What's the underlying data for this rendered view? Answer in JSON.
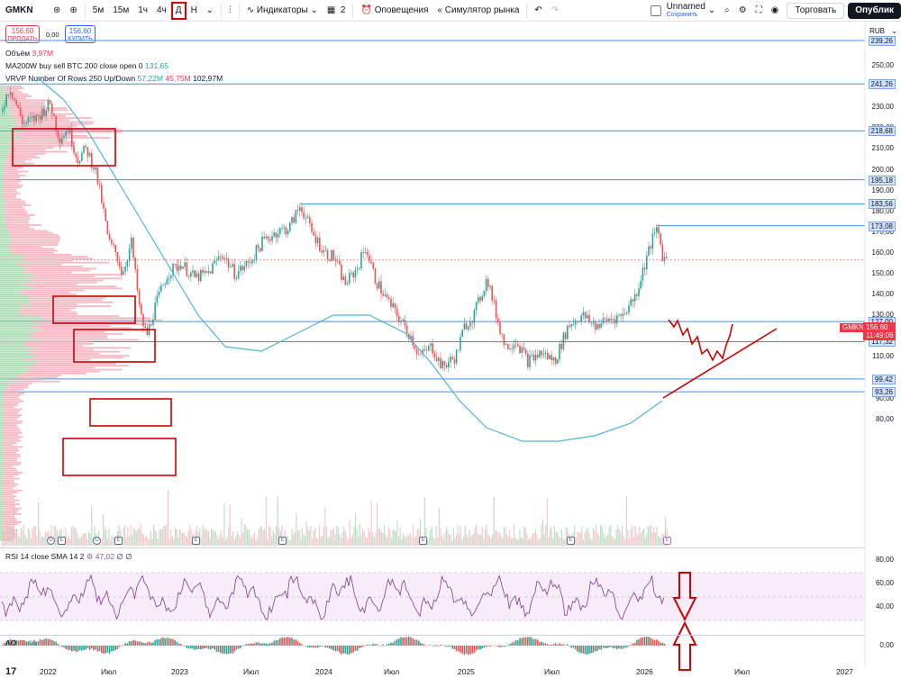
{
  "toolbar": {
    "symbol": "GMKN",
    "timeframes": [
      "5м",
      "15м",
      "1ч",
      "4ч",
      "Д",
      "Н"
    ],
    "active_timeframe": "Д",
    "indicators_label": "Индикаторы",
    "templates_count": "2",
    "alerts_label": "Оповещения",
    "replay_label": "Симулятор рынка",
    "layout_name": "Unnamed",
    "layout_status": "Сохранить",
    "trade_label": "Торговать",
    "publish_label": "Опублик"
  },
  "order_panel": {
    "sell_price": "156,60",
    "sell_label": "ПРОДАТЬ",
    "spread": "0,00",
    "buy_price": "156,60",
    "buy_label": "КУПИТЬ"
  },
  "legends": {
    "volume": {
      "label": "Объём",
      "value": "3,97M"
    },
    "ma": {
      "label": "MA200W buy sell BTC 200 close open 0",
      "value": "131,65"
    },
    "vrvp": {
      "label": "VRVP Number Of Rows 250 Up/Down",
      "up": "57,22M",
      "down": "45,75M",
      "total": "102,97M"
    },
    "rsi": {
      "label": "RSI 14 close SMA 14 2",
      "value": "47,02",
      "extra": "∅ ∅"
    },
    "ao": {
      "label": "AO",
      "value": "-2,46"
    }
  },
  "price_axis": {
    "currency": "RUB",
    "ticks": [
      "250,00",
      "240,00",
      "230,00",
      "220,00",
      "210,00",
      "200,00",
      "190,00",
      "180,00",
      "170,00",
      "160,00",
      "150,00",
      "140,00",
      "130,00",
      "120,00",
      "110,00",
      "100,00",
      "90,00",
      "80,00"
    ],
    "levels": [
      "239,26",
      "241,26",
      "218,68",
      "195,18",
      "183,56",
      "173,08",
      "127,00",
      "117,32",
      "99,42",
      "93,26"
    ],
    "current_price": "156,60",
    "countdown": "11:49:06",
    "symbol_tag": "GMKN"
  },
  "rsi_axis": {
    "ticks": [
      "80,00",
      "60,00",
      "40,00"
    ]
  },
  "ao_axis": {
    "ticks": [
      "0,00"
    ]
  },
  "time_axis": {
    "labels": [
      "2022",
      "Июл",
      "2023",
      "Июл",
      "2024",
      "Июл",
      "2025",
      "Июл",
      "2026",
      "Июл",
      "2027"
    ]
  },
  "events": [
    "D",
    "E",
    "D",
    "E",
    "E",
    "E",
    "E",
    "E",
    "E"
  ],
  "colors": {
    "up": "#26a69a",
    "down": "#ef5350",
    "ma": "#4fb3d9",
    "level": "#4a90d9",
    "annotation": "#d00000",
    "rsi": "#7e3c8c"
  }
}
